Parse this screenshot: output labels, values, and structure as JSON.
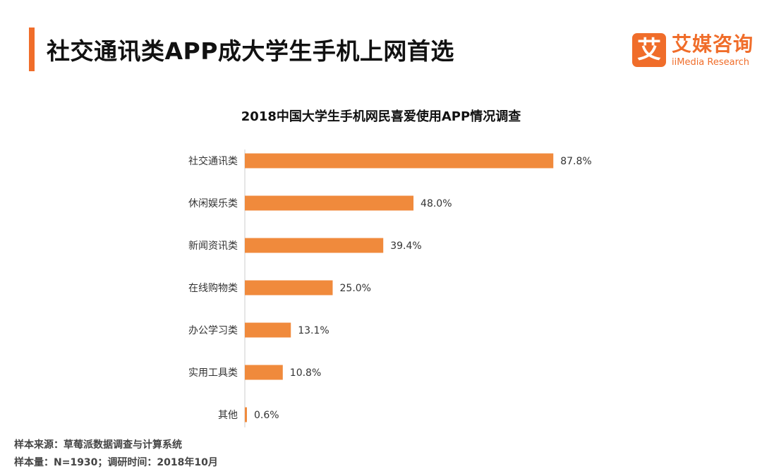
{
  "header": {
    "title": "社交通讯类APP成大学生手机上网首选",
    "logo": {
      "mark": "艾",
      "name": "艾媒咨询",
      "name_en": "iiMedia Research"
    }
  },
  "colors": {
    "accent": "#f06d2a",
    "bar": "#f08a3c",
    "axis": "#cccccc"
  },
  "chart_data": {
    "type": "bar",
    "orientation": "horizontal",
    "title": "2018中国大学生手机网民喜爱使用APP情况调查",
    "categories": [
      "社交通讯类",
      "休闲娱乐类",
      "新闻资讯类",
      "在线购物类",
      "办公学习类",
      "实用工具类",
      "其他"
    ],
    "values": [
      87.8,
      48.0,
      39.4,
      25.0,
      13.1,
      10.8,
      0.6
    ],
    "value_labels": [
      "87.8%",
      "48.0%",
      "39.4%",
      "25.0%",
      "13.1%",
      "10.8%",
      "0.6%"
    ],
    "unit": "%",
    "xlim": [
      0,
      100
    ],
    "grid": false,
    "legend": "none"
  },
  "footer": {
    "source": "样本来源：草莓派数据调查与计算系统",
    "sample": "样本量：N=1930；调研时间：2018年10月"
  }
}
